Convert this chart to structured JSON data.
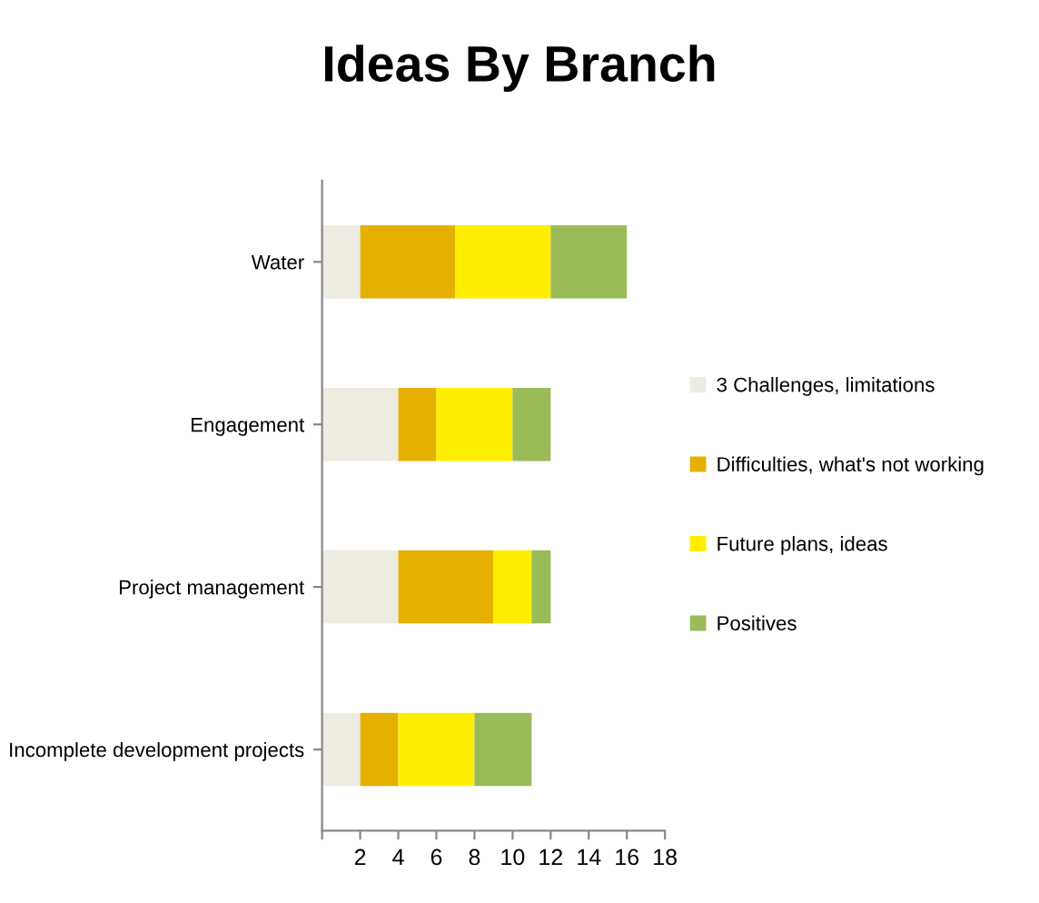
{
  "chart_data": {
    "type": "bar",
    "orientation": "horizontal",
    "stacked": true,
    "title": "Ideas By Branch",
    "categories": [
      "Water",
      "Engagement",
      "Project management",
      "Incomplete development projects"
    ],
    "series": [
      {
        "name": "3 Challenges, limitations",
        "color": "#eeece1",
        "values": [
          2,
          4,
          4,
          2
        ]
      },
      {
        "name": "Difficulties, what's not working",
        "color": "#e6b000",
        "values": [
          5,
          2,
          5,
          2
        ]
      },
      {
        "name": "Future plans, ideas",
        "color": "#ffee00",
        "values": [
          5,
          4,
          2,
          4
        ]
      },
      {
        "name": "Positives",
        "color": "#9bbb59",
        "values": [
          4,
          2,
          1,
          3
        ]
      }
    ],
    "xlim": [
      0,
      18
    ],
    "xticks": [
      {
        "value": 0,
        "label": null
      },
      2,
      4,
      6,
      8,
      10,
      12,
      14,
      16,
      18
    ],
    "grid": false,
    "legend": "right"
  }
}
